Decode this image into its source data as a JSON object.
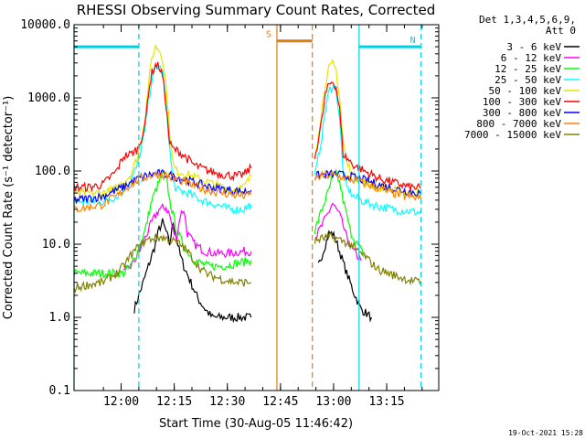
{
  "chart_data": {
    "type": "line",
    "title": "RHESSI Observing Summary Count Rates, Corrected",
    "xlabel": "Start Time (30-Aug-05 11:46:42)",
    "ylabel": "Corrected Count Rate (s⁻¹ detector⁻¹)",
    "y_scale": "log",
    "ylim": [
      0.1,
      10000
    ],
    "xlim_minutes_from_start": [
      0,
      103
    ],
    "y_ticks": [
      "0.1",
      "1.0",
      "10.0",
      "100.0",
      "1000.0",
      "10000.0"
    ],
    "x_ticks": [
      {
        "label": "12:00",
        "minute": 13.3
      },
      {
        "label": "12:15",
        "minute": 28.3
      },
      {
        "label": "12:30",
        "minute": 43.3
      },
      {
        "label": "12:45",
        "minute": 58.3
      },
      {
        "label": "13:00",
        "minute": 73.3
      },
      {
        "label": "13:15",
        "minute": 88.3
      }
    ],
    "legend_header": [
      "Det 1,3,4,5,6,9,",
      "Att 0"
    ],
    "series": [
      {
        "name": "3 - 6 keV",
        "color": "#000000",
        "points": [
          [
            17,
            1.3
          ],
          [
            19,
            2.5
          ],
          [
            21,
            5
          ],
          [
            23,
            10
          ],
          [
            24,
            16
          ],
          [
            25,
            20
          ],
          [
            26,
            15
          ],
          [
            27,
            10
          ],
          [
            28,
            20
          ],
          [
            29,
            12
          ],
          [
            30,
            7
          ],
          [
            31,
            5
          ],
          [
            33,
            3
          ],
          [
            35,
            1.8
          ],
          [
            37,
            1.3
          ],
          [
            39,
            1.0
          ],
          [
            42,
            1.0
          ],
          [
            45,
            1.0
          ],
          [
            48,
            1.0
          ],
          [
            50,
            1.0
          ],
          [
            69,
            5
          ],
          [
            71,
            10
          ],
          [
            72,
            14
          ],
          [
            73,
            14
          ],
          [
            74,
            11
          ],
          [
            75,
            8
          ],
          [
            77,
            4
          ],
          [
            79,
            2.2
          ],
          [
            81,
            1.3
          ],
          [
            84,
            1.0
          ]
        ]
      },
      {
        "name": "6 - 12 keV",
        "color": "#ff00ff",
        "points": [
          [
            14,
            4
          ],
          [
            16,
            5
          ],
          [
            18,
            7
          ],
          [
            20,
            12
          ],
          [
            22,
            20
          ],
          [
            24,
            30
          ],
          [
            26,
            32
          ],
          [
            27,
            25
          ],
          [
            28,
            15
          ],
          [
            29,
            12
          ],
          [
            30,
            25
          ],
          [
            31,
            30
          ],
          [
            32,
            14
          ],
          [
            34,
            10
          ],
          [
            37,
            8
          ],
          [
            40,
            7.5
          ],
          [
            44,
            7.5
          ],
          [
            48,
            8
          ],
          [
            50,
            8
          ],
          [
            68,
            12
          ],
          [
            70,
            18
          ],
          [
            72,
            28
          ],
          [
            73,
            36
          ],
          [
            74,
            30
          ],
          [
            75,
            25
          ],
          [
            76,
            18
          ],
          [
            77,
            12
          ],
          [
            79,
            8
          ],
          [
            81,
            6
          ]
        ]
      },
      {
        "name": "12 - 25 keV",
        "color": "#00ff00",
        "points": [
          [
            0,
            4
          ],
          [
            4,
            4
          ],
          [
            8,
            4
          ],
          [
            12,
            4
          ],
          [
            14,
            4
          ],
          [
            16,
            5
          ],
          [
            18,
            8
          ],
          [
            20,
            15
          ],
          [
            22,
            40
          ],
          [
            24,
            70
          ],
          [
            25,
            90
          ],
          [
            26,
            85
          ],
          [
            27,
            40
          ],
          [
            28,
            25
          ],
          [
            29,
            15
          ],
          [
            30,
            12
          ],
          [
            32,
            8
          ],
          [
            34,
            6
          ],
          [
            38,
            5
          ],
          [
            42,
            5
          ],
          [
            46,
            5.5
          ],
          [
            50,
            6
          ],
          [
            68,
            15
          ],
          [
            70,
            30
          ],
          [
            72,
            55
          ],
          [
            73,
            85
          ],
          [
            74,
            90
          ],
          [
            75,
            70
          ],
          [
            76,
            40
          ],
          [
            77,
            25
          ],
          [
            78,
            15
          ],
          [
            80,
            10
          ],
          [
            82,
            7
          ]
        ]
      },
      {
        "name": "25 - 50 keV",
        "color": "#00ffff",
        "points": [
          [
            0,
            38
          ],
          [
            4,
            38
          ],
          [
            8,
            38
          ],
          [
            12,
            45
          ],
          [
            14,
            55
          ],
          [
            16,
            75
          ],
          [
            18,
            120
          ],
          [
            20,
            350
          ],
          [
            21,
            900
          ],
          [
            22,
            1800
          ],
          [
            23,
            2600
          ],
          [
            24,
            2700
          ],
          [
            25,
            2200
          ],
          [
            26,
            900
          ],
          [
            27,
            200
          ],
          [
            28,
            70
          ],
          [
            29,
            55
          ],
          [
            32,
            50
          ],
          [
            36,
            40
          ],
          [
            40,
            35
          ],
          [
            44,
            30
          ],
          [
            48,
            30
          ],
          [
            50,
            35
          ],
          [
            68,
            80
          ],
          [
            70,
            300
          ],
          [
            71,
            700
          ],
          [
            72,
            1200
          ],
          [
            73,
            1500
          ],
          [
            74,
            1300
          ],
          [
            75,
            500
          ],
          [
            76,
            100
          ],
          [
            77,
            60
          ],
          [
            79,
            45
          ],
          [
            82,
            38
          ],
          [
            86,
            33
          ],
          [
            90,
            30
          ],
          [
            95,
            28
          ],
          [
            98,
            27
          ]
        ]
      },
      {
        "name": "50 - 100 keV",
        "color": "#e6e600",
        "points": [
          [
            0,
            50
          ],
          [
            4,
            50
          ],
          [
            8,
            50
          ],
          [
            12,
            58
          ],
          [
            14,
            70
          ],
          [
            16,
            90
          ],
          [
            18,
            160
          ],
          [
            20,
            500
          ],
          [
            21,
            1500
          ],
          [
            22,
            3500
          ],
          [
            23,
            5000
          ],
          [
            24,
            4600
          ],
          [
            25,
            3500
          ],
          [
            26,
            1500
          ],
          [
            27,
            350
          ],
          [
            28,
            120
          ],
          [
            29,
            100
          ],
          [
            32,
            90
          ],
          [
            36,
            75
          ],
          [
            40,
            65
          ],
          [
            44,
            55
          ],
          [
            48,
            60
          ],
          [
            50,
            85
          ],
          [
            68,
            150
          ],
          [
            70,
            700
          ],
          [
            71,
            1600
          ],
          [
            72,
            2500
          ],
          [
            73,
            2900
          ],
          [
            74,
            2400
          ],
          [
            75,
            1000
          ],
          [
            76,
            250
          ],
          [
            77,
            130
          ],
          [
            79,
            85
          ],
          [
            82,
            70
          ],
          [
            86,
            60
          ],
          [
            90,
            55
          ],
          [
            95,
            50
          ],
          [
            98,
            50
          ]
        ]
      },
      {
        "name": "100 - 300 keV",
        "color": "#ff0000",
        "points": [
          [
            0,
            60
          ],
          [
            4,
            60
          ],
          [
            8,
            65
          ],
          [
            12,
            100
          ],
          [
            14,
            160
          ],
          [
            16,
            170
          ],
          [
            18,
            200
          ],
          [
            20,
            400
          ],
          [
            21,
            1200
          ],
          [
            22,
            2200
          ],
          [
            23,
            2800
          ],
          [
            24,
            2700
          ],
          [
            25,
            2000
          ],
          [
            26,
            800
          ],
          [
            27,
            240
          ],
          [
            28,
            200
          ],
          [
            30,
            180
          ],
          [
            34,
            120
          ],
          [
            38,
            100
          ],
          [
            42,
            90
          ],
          [
            46,
            85
          ],
          [
            48,
            90
          ],
          [
            50,
            110
          ],
          [
            68,
            150
          ],
          [
            70,
            500
          ],
          [
            71,
            1100
          ],
          [
            72,
            1500
          ],
          [
            73,
            1700
          ],
          [
            74,
            1400
          ],
          [
            75,
            700
          ],
          [
            76,
            170
          ],
          [
            77,
            150
          ],
          [
            79,
            120
          ],
          [
            82,
            100
          ],
          [
            86,
            80
          ],
          [
            90,
            70
          ],
          [
            95,
            60
          ],
          [
            98,
            58
          ]
        ]
      },
      {
        "name": "300 - 800 keV",
        "color": "#0000ff",
        "points": [
          [
            0,
            40
          ],
          [
            4,
            42
          ],
          [
            8,
            45
          ],
          [
            12,
            55
          ],
          [
            14,
            60
          ],
          [
            16,
            70
          ],
          [
            18,
            78
          ],
          [
            20,
            85
          ],
          [
            22,
            90
          ],
          [
            24,
            92
          ],
          [
            26,
            90
          ],
          [
            28,
            85
          ],
          [
            32,
            75
          ],
          [
            36,
            65
          ],
          [
            40,
            58
          ],
          [
            44,
            55
          ],
          [
            48,
            52
          ],
          [
            50,
            55
          ],
          [
            68,
            85
          ],
          [
            70,
            88
          ],
          [
            72,
            90
          ],
          [
            74,
            90
          ],
          [
            76,
            88
          ],
          [
            79,
            82
          ],
          [
            82,
            75
          ],
          [
            86,
            65
          ],
          [
            90,
            58
          ],
          [
            95,
            52
          ],
          [
            98,
            50
          ]
        ]
      },
      {
        "name": "800 - 7000 keV",
        "color": "#ff8000",
        "points": [
          [
            0,
            30
          ],
          [
            4,
            32
          ],
          [
            8,
            35
          ],
          [
            12,
            45
          ],
          [
            14,
            55
          ],
          [
            16,
            65
          ],
          [
            18,
            75
          ],
          [
            20,
            82
          ],
          [
            22,
            88
          ],
          [
            24,
            90
          ],
          [
            26,
            88
          ],
          [
            28,
            80
          ],
          [
            32,
            68
          ],
          [
            36,
            58
          ],
          [
            40,
            52
          ],
          [
            44,
            48
          ],
          [
            48,
            46
          ],
          [
            50,
            48
          ],
          [
            68,
            80
          ],
          [
            70,
            85
          ],
          [
            72,
            88
          ],
          [
            74,
            86
          ],
          [
            76,
            82
          ],
          [
            79,
            75
          ],
          [
            82,
            68
          ],
          [
            86,
            58
          ],
          [
            90,
            50
          ],
          [
            95,
            44
          ],
          [
            98,
            42
          ]
        ]
      },
      {
        "name": "7000 - 15000 keV",
        "color": "#808000",
        "points": [
          [
            0,
            2.5
          ],
          [
            4,
            2.8
          ],
          [
            8,
            3
          ],
          [
            12,
            4
          ],
          [
            14,
            5
          ],
          [
            16,
            7
          ],
          [
            18,
            9
          ],
          [
            20,
            11
          ],
          [
            22,
            12
          ],
          [
            24,
            12.5
          ],
          [
            26,
            12
          ],
          [
            28,
            11
          ],
          [
            30,
            10
          ],
          [
            32,
            8
          ],
          [
            34,
            6
          ],
          [
            36,
            4.5
          ],
          [
            38,
            3.8
          ],
          [
            42,
            3.3
          ],
          [
            46,
            3
          ],
          [
            50,
            3
          ],
          [
            68,
            11
          ],
          [
            70,
            12
          ],
          [
            72,
            12.5
          ],
          [
            74,
            12
          ],
          [
            76,
            11
          ],
          [
            78,
            10
          ],
          [
            80,
            8
          ],
          [
            82,
            7
          ],
          [
            84,
            5.5
          ],
          [
            86,
            4.5
          ],
          [
            90,
            3.8
          ],
          [
            95,
            3.2
          ],
          [
            98,
            3
          ]
        ]
      }
    ],
    "intervals": [
      {
        "kind": "night",
        "label": "",
        "color": "#00d0e0",
        "start": 0,
        "end": 18.3,
        "y": 5000,
        "solid_line": 0,
        "dashed_line": 18.3
      },
      {
        "kind": "night",
        "label": "N",
        "color": "#00d0e0",
        "start": 80.5,
        "end": 98,
        "y": 5000,
        "solid_line": 80.5,
        "dashed_line": 98
      },
      {
        "kind": "saa",
        "label": "S",
        "color": "#e07a14",
        "start": 57.3,
        "end": 67.3,
        "y": 6000,
        "solid_line": 57.3,
        "dashed_line": 67.3
      }
    ],
    "data_gap_minutes": [
      51,
      67.3
    ],
    "footer": "19-Oct-2021 15:28"
  }
}
